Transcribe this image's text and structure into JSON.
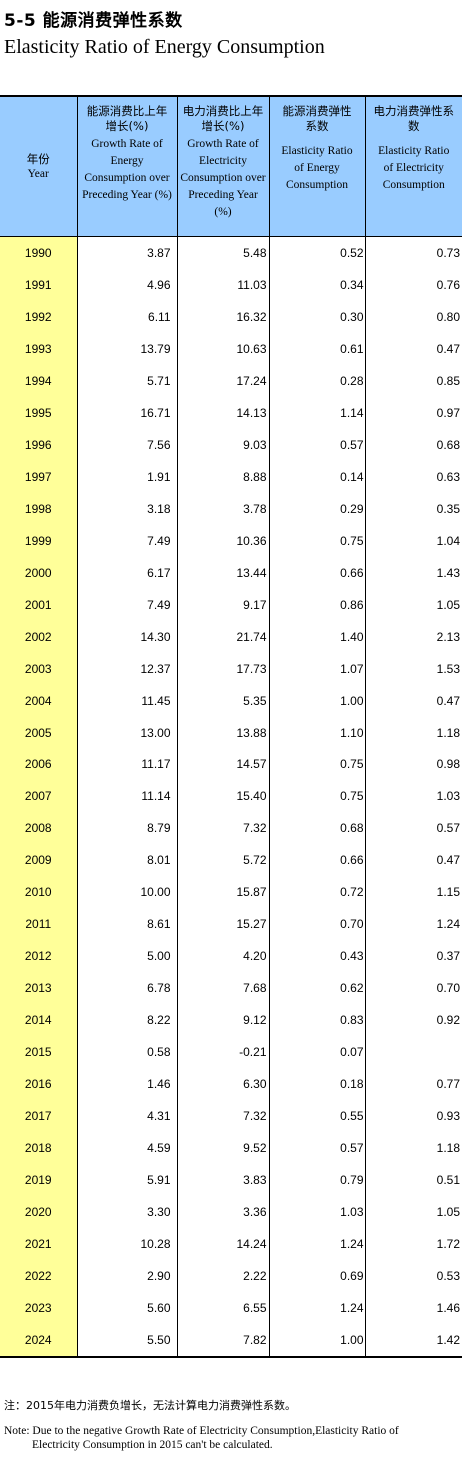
{
  "title_cn": "5-5  能源消费弹性系数",
  "title_en": "Elasticity Ratio of Energy Consumption",
  "headers": [
    {
      "cn": "年份",
      "en": "Year"
    },
    {
      "cn": "能源消费比上年增长(%)",
      "en": "Growth Rate of Energy Consumption over Preceding Year (%)"
    },
    {
      "cn": "电力消费比上年增长(%)",
      "en": "Growth Rate of Electricity Consumption over Preceding Year (%)"
    },
    {
      "cn": "能源消费弹性系数",
      "en": "Elasticity Ratio of Energy Consumption"
    },
    {
      "cn": "电力消费弹性系数",
      "en": "Elasticity Ratio of Electricity Consumption"
    }
  ],
  "rows": [
    [
      "1990",
      "3.87",
      "5.48",
      "0.52",
      "0.73"
    ],
    [
      "1991",
      "4.96",
      "11.03",
      "0.34",
      "0.76"
    ],
    [
      "1992",
      "6.11",
      "16.32",
      "0.30",
      "0.80"
    ],
    [
      "1993",
      "13.79",
      "10.63",
      "0.61",
      "0.47"
    ],
    [
      "1994",
      "5.71",
      "17.24",
      "0.28",
      "0.85"
    ],
    [
      "1995",
      "16.71",
      "14.13",
      "1.14",
      "0.97"
    ],
    [
      "1996",
      "7.56",
      "9.03",
      "0.57",
      "0.68"
    ],
    [
      "1997",
      "1.91",
      "8.88",
      "0.14",
      "0.63"
    ],
    [
      "1998",
      "3.18",
      "3.78",
      "0.29",
      "0.35"
    ],
    [
      "1999",
      "7.49",
      "10.36",
      "0.75",
      "1.04"
    ],
    [
      "2000",
      "6.17",
      "13.44",
      "0.66",
      "1.43"
    ],
    [
      "2001",
      "7.49",
      "9.17",
      "0.86",
      "1.05"
    ],
    [
      "2002",
      "14.30",
      "21.74",
      "1.40",
      "2.13"
    ],
    [
      "2003",
      "12.37",
      "17.73",
      "1.07",
      "1.53"
    ],
    [
      "2004",
      "11.45",
      "5.35",
      "1.00",
      "0.47"
    ],
    [
      "2005",
      "13.00",
      "13.88",
      "1.10",
      "1.18"
    ],
    [
      "2006",
      "11.17",
      "14.57",
      "0.75",
      "0.98"
    ],
    [
      "2007",
      "11.14",
      "15.40",
      "0.75",
      "1.03"
    ],
    [
      "2008",
      "8.79",
      "7.32",
      "0.68",
      "0.57"
    ],
    [
      "2009",
      "8.01",
      "5.72",
      "0.66",
      "0.47"
    ],
    [
      "2010",
      "10.00",
      "15.87",
      "0.72",
      "1.15"
    ],
    [
      "2011",
      "8.61",
      "15.27",
      "0.70",
      "1.24"
    ],
    [
      "2012",
      "5.00",
      "4.20",
      "0.43",
      "0.37"
    ],
    [
      "2013",
      "6.78",
      "7.68",
      "0.62",
      "0.70"
    ],
    [
      "2014",
      "8.22",
      "9.12",
      "0.83",
      "0.92"
    ],
    [
      "2015",
      "0.58",
      "-0.21",
      "0.07",
      ""
    ],
    [
      "2016",
      "1.46",
      "6.30",
      "0.18",
      "0.77"
    ],
    [
      "2017",
      "4.31",
      "7.32",
      "0.55",
      "0.93"
    ],
    [
      "2018",
      "4.59",
      "9.52",
      "0.57",
      "1.18"
    ],
    [
      "2019",
      "5.91",
      "3.83",
      "0.79",
      "0.51"
    ],
    [
      "2020",
      "3.30",
      "3.36",
      "1.03",
      "1.05"
    ],
    [
      "2021",
      "10.28",
      "14.24",
      "1.24",
      "1.72"
    ],
    [
      "2022",
      "2.90",
      "2.22",
      "0.69",
      "0.53"
    ],
    [
      "2023",
      "5.60",
      "6.55",
      "1.24",
      "1.46"
    ],
    [
      "2024",
      "5.50",
      "7.82",
      "1.00",
      "1.42"
    ]
  ],
  "note_cn": "注：2015年电力消费负增长，无法计算电力消费弹性系数。",
  "note_en_line1": "Note: Due to the negative Growth Rate of Electricity Consumption,Elasticity Ratio of",
  "note_en_line2": "Electricity Consumption in 2015 can't be calculated.",
  "colors": {
    "header_bg": "#99ccff",
    "year_bg": "#ffff99"
  }
}
